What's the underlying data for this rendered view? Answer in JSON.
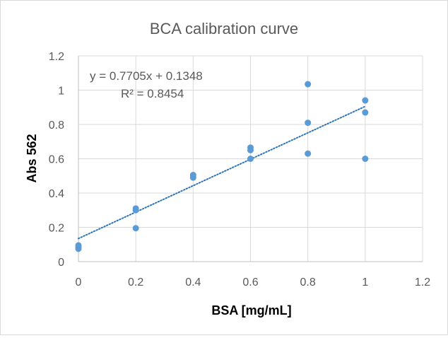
{
  "chart_data": {
    "type": "scatter",
    "title": "BCA calibration curve",
    "xlabel": "BSA [mg/mL]",
    "ylabel": "Abs 562",
    "xlim": [
      0,
      1.2
    ],
    "ylim": [
      0,
      1.2
    ],
    "x_ticks": [
      "0",
      "0.2",
      "0.4",
      "0.6",
      "0.8",
      "1",
      "1.2"
    ],
    "y_ticks": [
      "0",
      "0.2",
      "0.4",
      "0.6",
      "0.8",
      "1",
      "1.2"
    ],
    "grid": true,
    "points": [
      {
        "x": 0,
        "y": 0.095
      },
      {
        "x": 0,
        "y": 0.085
      },
      {
        "x": 0,
        "y": 0.075
      },
      {
        "x": 0.2,
        "y": 0.31
      },
      {
        "x": 0.2,
        "y": 0.3
      },
      {
        "x": 0.2,
        "y": 0.195
      },
      {
        "x": 0.4,
        "y": 0.505
      },
      {
        "x": 0.4,
        "y": 0.49
      },
      {
        "x": 0.6,
        "y": 0.665
      },
      {
        "x": 0.6,
        "y": 0.65
      },
      {
        "x": 0.6,
        "y": 0.6
      },
      {
        "x": 0.8,
        "y": 1.035
      },
      {
        "x": 0.8,
        "y": 0.81
      },
      {
        "x": 0.8,
        "y": 0.63
      },
      {
        "x": 1,
        "y": 0.94
      },
      {
        "x": 1,
        "y": 0.87
      },
      {
        "x": 1,
        "y": 0.6
      }
    ],
    "trendline": {
      "type": "linear",
      "slope": 0.7705,
      "intercept": 0.1348,
      "x_range": [
        0,
        1
      ],
      "style": "dotted"
    },
    "equation_text": "y = 0.7705x + 0.1348",
    "r2_text": "R² = 0.8454",
    "colors": {
      "points": "#5b9bd5",
      "trendline": "#2e75b6",
      "grid": "#d9d9d9",
      "text": "#595959"
    }
  }
}
